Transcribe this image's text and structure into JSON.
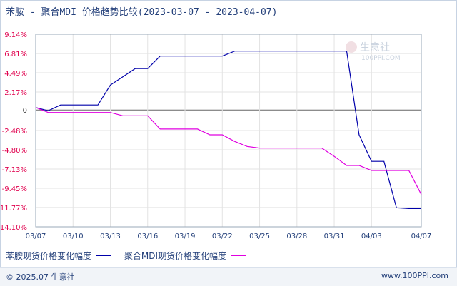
{
  "title": "苯胺 - 聚合MDI 价格趋势比较(2023-03-07 - 2023-04-07)",
  "watermark": {
    "name": "生意社",
    "url": "100PPI.COM"
  },
  "footer": {
    "copyright": "© 2025.07 生意社",
    "site": "www.100PPI.com"
  },
  "colors": {
    "grid": "#e3e3e3",
    "axis": "#9aa8b8",
    "zero": "#666666",
    "pos_tick": "#e0004d",
    "neg_tick": "#e0004d",
    "date_tick": "#24407a"
  },
  "chart_data": {
    "type": "line",
    "y_ticks": [
      "9.14%",
      "6.81%",
      "4.49%",
      "2.17%",
      "0",
      "-2.48%",
      "-4.80%",
      "-7.13%",
      "-9.45%",
      "-11.77%",
      "-14.10%"
    ],
    "y_tick_values": [
      9.14,
      6.81,
      4.49,
      2.17,
      0,
      -2.48,
      -4.8,
      -7.13,
      -9.45,
      -11.77,
      -14.1
    ],
    "ylim": [
      -14.1,
      9.14
    ],
    "x_ticks": [
      "03/07",
      "03/10",
      "03/13",
      "03/16",
      "03/19",
      "03/22",
      "03/25",
      "03/28",
      "03/31",
      "04/03",
      "04/07"
    ],
    "x": [
      "03/07",
      "03/08",
      "03/09",
      "03/10",
      "03/11",
      "03/12",
      "03/13",
      "03/14",
      "03/15",
      "03/16",
      "03/17",
      "03/18",
      "03/19",
      "03/20",
      "03/21",
      "03/22",
      "03/23",
      "03/24",
      "03/25",
      "03/26",
      "03/27",
      "03/28",
      "03/29",
      "03/30",
      "03/31",
      "04/01",
      "04/02",
      "04/03",
      "04/04",
      "04/05",
      "04/06",
      "04/07"
    ],
    "series": [
      {
        "name": "苯胺现货价格变化幅度",
        "color": "#0000aa",
        "values": [
          0.3,
          -0.1,
          0.6,
          0.6,
          0.6,
          0.6,
          3.0,
          4.0,
          5.0,
          5.0,
          6.5,
          6.5,
          6.5,
          6.5,
          6.5,
          6.5,
          7.1,
          7.1,
          7.1,
          7.1,
          7.1,
          7.1,
          7.1,
          7.1,
          7.1,
          7.1,
          -3.0,
          -6.2,
          -6.2,
          -11.8,
          -11.9,
          -11.9
        ]
      },
      {
        "name": "聚合MDI现货价格变化幅度",
        "color": "#e000e0",
        "values": [
          0.3,
          -0.3,
          -0.3,
          -0.3,
          -0.3,
          -0.3,
          -0.3,
          -0.7,
          -0.7,
          -0.7,
          -2.3,
          -2.3,
          -2.3,
          -2.3,
          -3.0,
          -3.0,
          -3.8,
          -4.4,
          -4.6,
          -4.6,
          -4.6,
          -4.6,
          -4.6,
          -4.6,
          -5.6,
          -6.7,
          -6.7,
          -7.3,
          -7.3,
          -7.3,
          -7.3,
          -10.2
        ]
      }
    ]
  }
}
